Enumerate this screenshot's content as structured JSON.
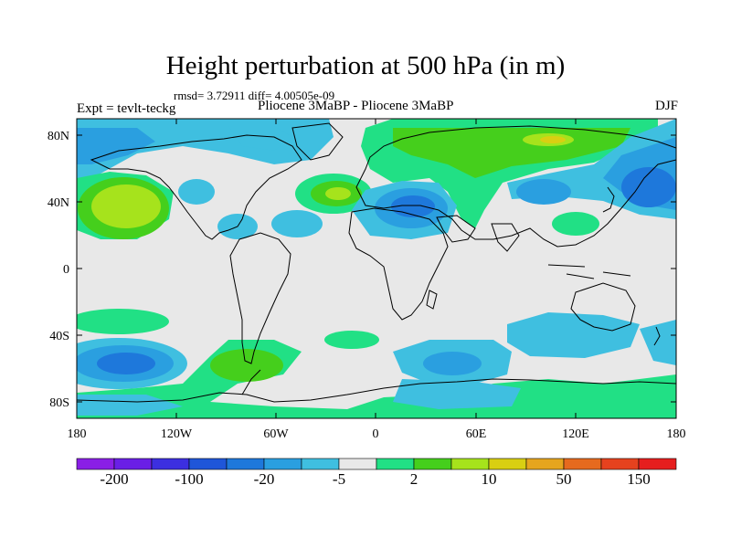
{
  "title": "Height perturbation at 500 hPa (in m)",
  "stats": "rmsd= 3.72911  diff= 4.00505e-09",
  "expt_label": "Expt = tevlt-teckg",
  "expt_name": "Pliocene    3MaBP - Pliocene    3MaBP",
  "season": "DJF",
  "lat_labels": [
    "80N",
    "40N",
    "0",
    "40S",
    "80S"
  ],
  "lon_labels": [
    "180",
    "120W",
    "60W",
    "0",
    "60E",
    "120E",
    "180"
  ],
  "colorbar": {
    "colors": [
      "#8a1fe6",
      "#6a1fe6",
      "#3c2fe0",
      "#1f56d9",
      "#1e78db",
      "#2a9fe0",
      "#3fbfe0",
      "#e8e8e8",
      "#21e085",
      "#45cf1c",
      "#a6e31c",
      "#d9cf12",
      "#e6a51e",
      "#e66a1e",
      "#e6421e",
      "#e61e1e"
    ],
    "labels": [
      "-200",
      "-100",
      "-20",
      "-5",
      "2",
      "10",
      "50",
      "150"
    ]
  },
  "legend_colors": {
    "neutral": "#e8e8e8",
    "light_blue": "#3fbfe0",
    "mid_blue": "#2a9fe0",
    "blue": "#1e78db",
    "dark_blue": "#1f56d9",
    "light_green": "#21e085",
    "green": "#45cf1c",
    "yellow_green": "#a6e31c",
    "yellow": "#d9cf12"
  }
}
